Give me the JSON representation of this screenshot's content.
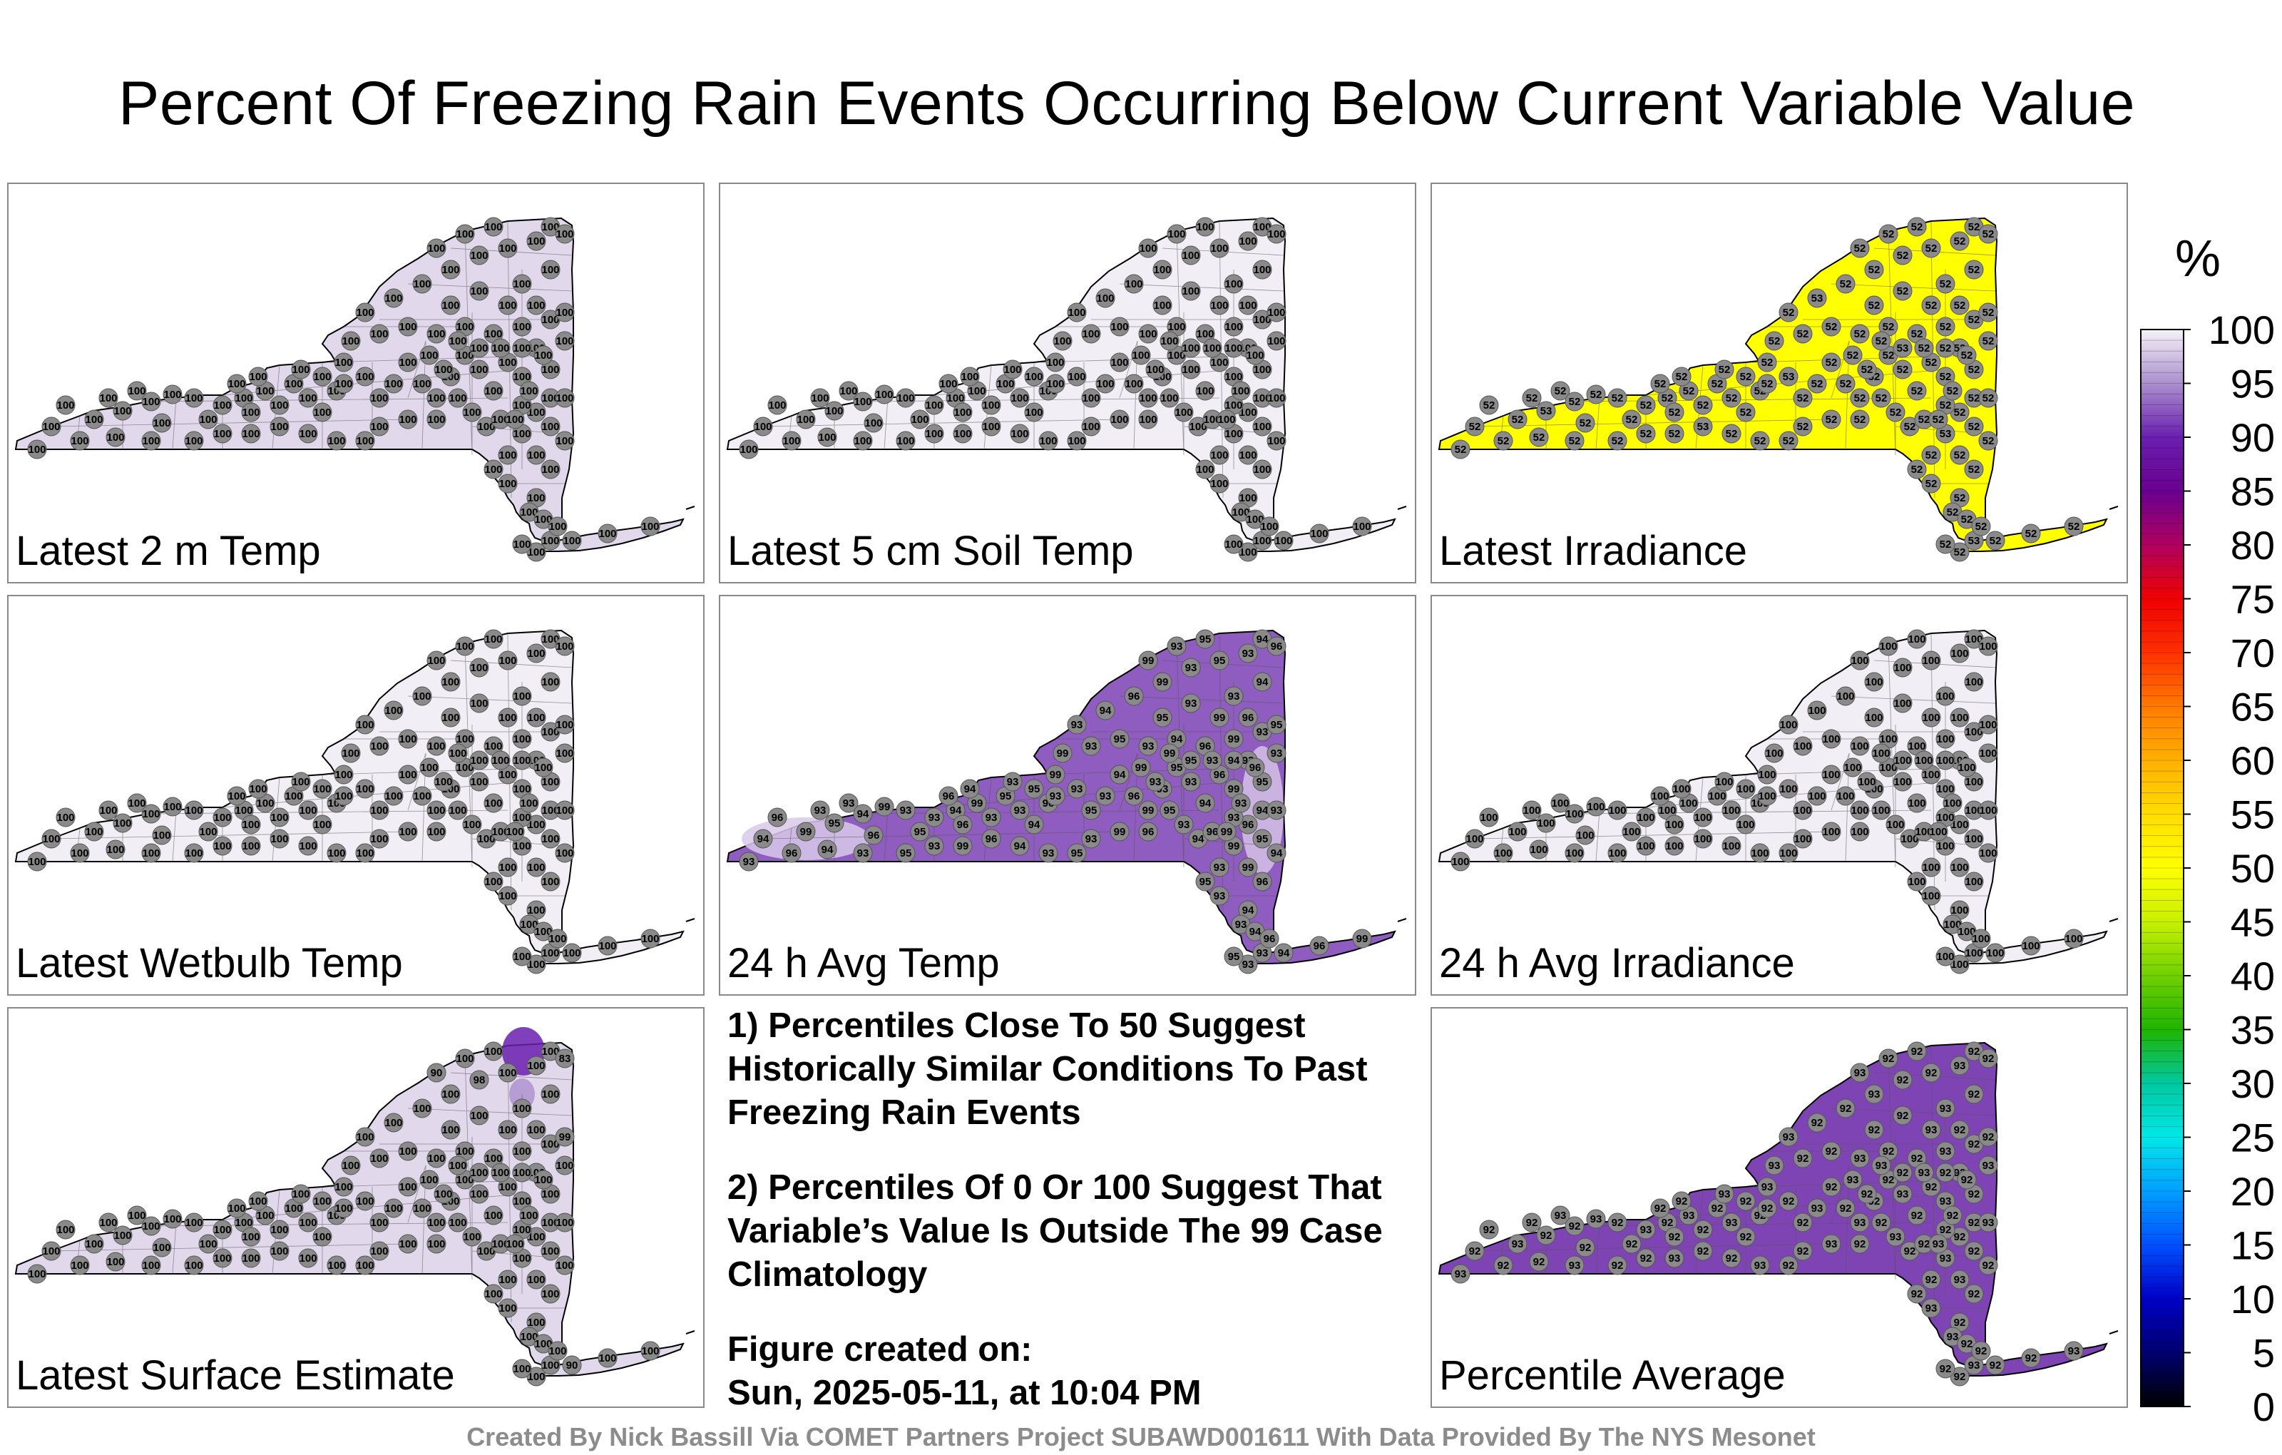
{
  "title": "Percent Of Freezing Rain Events Occurring Below Current Variable Value",
  "panels": [
    {
      "label": "Latest 2 m Temp",
      "base_value": 100,
      "fill": "#e2d8ec"
    },
    {
      "label": "Latest 5 cm Soil Temp",
      "base_value": 100,
      "fill": "#f1eef5"
    },
    {
      "label": "Latest Irradiance",
      "base_value": 52,
      "fill": "#ffff00"
    },
    {
      "label": "Latest Wetbulb Temp",
      "base_value": 100,
      "fill": "#f1eef5"
    },
    {
      "label": "24 h Avg Temp",
      "base_value": 94,
      "fill": "#8f5cbf"
    },
    {
      "label": "24 h Avg Irradiance",
      "base_value": 100,
      "fill": "#f1eef5"
    },
    {
      "label": "Latest Surface Estimate",
      "base_value": 100,
      "fill": "#e2d8ec"
    },
    {
      "label": "Percentile Average",
      "base_value": 92,
      "fill": "#7e44b4"
    }
  ],
  "notes": {
    "note1": "1) Percentiles Close To 50 Suggest Historically Similar Conditions To Past Freezing Rain Events",
    "note2": "2) Percentiles Of 0 Or 100 Suggest That Variable’s Value Is Outside The 99 Case Climatology",
    "created_label": "Figure created on:",
    "created_date": "Sun, 2025-05-11, at 10:04 PM"
  },
  "colorbar": {
    "unit": "%",
    "ticks": [
      100,
      95,
      90,
      85,
      80,
      75,
      70,
      65,
      60,
      55,
      50,
      45,
      40,
      35,
      30,
      25,
      20,
      15,
      10,
      5,
      0
    ],
    "colors": [
      "#f5f2f8",
      "#ab8fcd",
      "#6a1fb0",
      "#6a0090",
      "#b00060",
      "#f00000",
      "#ff3000",
      "#ff7a00",
      "#ffb000",
      "#ffdc00",
      "#ffff00",
      "#c8f000",
      "#70d000",
      "#20b400",
      "#00c8a0",
      "#00e8e8",
      "#00a0ff",
      "#0050ff",
      "#0000c8",
      "#000070",
      "#000000"
    ]
  },
  "credits": "Created By Nick Bassill Via COMET Partners Project SUBAWD001611 With Data Provided By The NYS Mesonet"
}
